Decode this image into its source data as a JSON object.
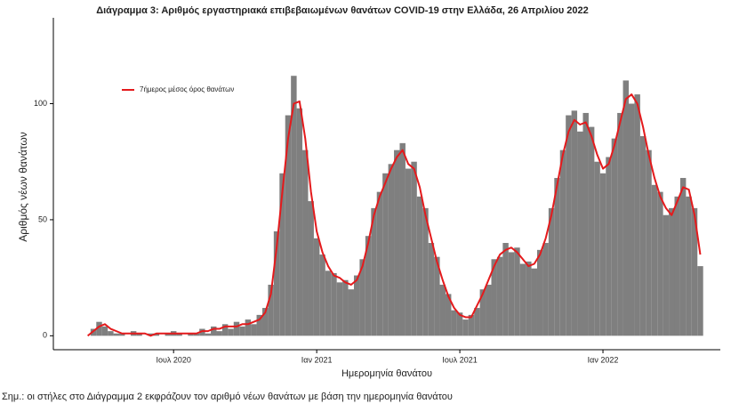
{
  "chart_data": {
    "type": "combo",
    "title": "Διάγραμμα 3: Αριθμός εργαστηριακά επιβεβαιωμένων θανάτων COVID-19 στην Ελλάδα, 26 Απριλίου 2022",
    "x_label": "Ημερομηνία θανάτου",
    "y_label": "Αριθμός νέων θανάτων",
    "note": "Σημ.: οι στήλες στο Διάγραμμα 2 εκφράζουν τον αριθμό νέων θανάτων με βάση την ημερομηνία θανάτου",
    "xlim": [
      2020.08,
      2022.41
    ],
    "ylim": [
      -6,
      137
    ],
    "xticks": [
      {
        "value": 2020.5,
        "label": "Ιουλ 2020"
      },
      {
        "value": 2021.0,
        "label": "Ιαν 2021"
      },
      {
        "value": 2021.5,
        "label": "Ιουλ 2021"
      },
      {
        "value": 2022.0,
        "label": "Ιαν 2022"
      }
    ],
    "yticks": [
      0,
      50,
      100
    ],
    "grid": false,
    "legend": "top-left",
    "x": [
      2020.2,
      2020.22,
      2020.24,
      2020.26,
      2020.28,
      2020.3,
      2020.32,
      2020.34,
      2020.36,
      2020.38,
      2020.4,
      2020.42,
      2020.44,
      2020.46,
      2020.48,
      2020.5,
      2020.52,
      2020.54,
      2020.56,
      2020.58,
      2020.6,
      2020.62,
      2020.64,
      2020.66,
      2020.68,
      2020.7,
      2020.72,
      2020.74,
      2020.76,
      2020.78,
      2020.8,
      2020.82,
      2020.84,
      2020.86,
      2020.88,
      2020.9,
      2020.92,
      2020.94,
      2020.96,
      2020.98,
      2021.0,
      2021.02,
      2021.04,
      2021.06,
      2021.08,
      2021.1,
      2021.12,
      2021.14,
      2021.16,
      2021.18,
      2021.2,
      2021.22,
      2021.24,
      2021.26,
      2021.28,
      2021.3,
      2021.32,
      2021.34,
      2021.36,
      2021.38,
      2021.4,
      2021.42,
      2021.44,
      2021.46,
      2021.48,
      2021.5,
      2021.52,
      2021.54,
      2021.56,
      2021.58,
      2021.6,
      2021.62,
      2021.64,
      2021.66,
      2021.68,
      2021.7,
      2021.72,
      2021.74,
      2021.76,
      2021.78,
      2021.8,
      2021.82,
      2021.84,
      2021.86,
      2021.88,
      2021.9,
      2021.92,
      2021.94,
      2021.96,
      2021.98,
      2022.0,
      2022.02,
      2022.04,
      2022.06,
      2022.08,
      2022.1,
      2022.12,
      2022.14,
      2022.16,
      2022.18,
      2022.2,
      2022.22,
      2022.24,
      2022.26,
      2022.28,
      2022.3,
      2022.32,
      2022.34
    ],
    "series": [
      {
        "type": "bar",
        "color": "#7f7f7f",
        "values": [
          0,
          3,
          6,
          4,
          2,
          1,
          1,
          0,
          2,
          1,
          0,
          1,
          1,
          0,
          1,
          2,
          1,
          0,
          1,
          1,
          3,
          1,
          4,
          2,
          5,
          3,
          6,
          4,
          7,
          5,
          9,
          12,
          22,
          45,
          70,
          95,
          112,
          98,
          80,
          58,
          42,
          35,
          28,
          27,
          23,
          24,
          20,
          26,
          33,
          43,
          55,
          62,
          70,
          74,
          80,
          83,
          72,
          75,
          60,
          55,
          40,
          34,
          22,
          18,
          11,
          10,
          7,
          9,
          12,
          20,
          22,
          33,
          34,
          40,
          36,
          38,
          31,
          32,
          29,
          37,
          40,
          55,
          68,
          80,
          95,
          97,
          88,
          96,
          90,
          75,
          70,
          77,
          85,
          96,
          110,
          100,
          104,
          86,
          80,
          65,
          62,
          52,
          55,
          60,
          68,
          60,
          55,
          30
        ]
      },
      {
        "type": "line",
        "name": "7ήμερος μέσος όρος θανάτων",
        "color": "#e41a1c",
        "values": [
          0,
          2,
          4,
          5,
          3,
          2,
          1,
          1,
          1,
          1,
          1,
          0,
          1,
          1,
          1,
          1,
          1,
          1,
          1,
          1,
          2,
          2,
          3,
          3,
          4,
          4,
          4,
          5,
          5,
          6,
          7,
          10,
          18,
          38,
          62,
          85,
          100,
          101,
          85,
          62,
          45,
          36,
          30,
          26,
          25,
          23,
          22,
          24,
          30,
          40,
          52,
          60,
          66,
          72,
          77,
          80,
          74,
          72,
          64,
          52,
          42,
          32,
          24,
          17,
          12,
          9,
          8,
          8,
          13,
          18,
          24,
          30,
          35,
          37,
          38,
          36,
          33,
          30,
          31,
          35,
          42,
          52,
          65,
          78,
          88,
          93,
          91,
          92,
          86,
          78,
          72,
          74,
          82,
          92,
          102,
          104,
          100,
          90,
          78,
          68,
          60,
          55,
          52,
          58,
          64,
          63,
          52,
          35
        ]
      }
    ]
  }
}
